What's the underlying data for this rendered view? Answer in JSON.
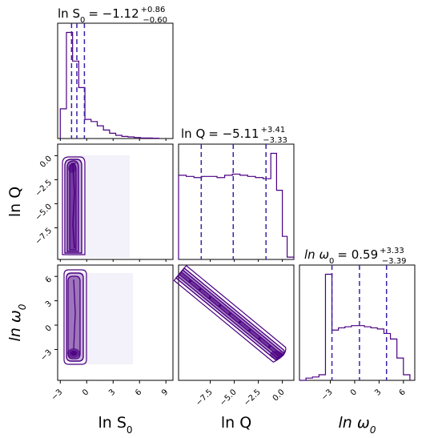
{
  "chart_data": [
    {
      "type": "histogram",
      "panel": "ln_S0_marginal",
      "title": {
        "lhs": "ln S",
        "sub": "0",
        "value": "= −1.12",
        "plus": "+0.86",
        "minus": "−0.60"
      },
      "xlim": [
        -3.3,
        9.8
      ],
      "bins_edges": [
        -3.0,
        -2.3,
        -1.6,
        -0.9,
        -0.2,
        0.5,
        1.2,
        1.9,
        2.6,
        3.3,
        4.0,
        4.7,
        5.4,
        6.1,
        6.8,
        7.5,
        8.2
      ],
      "bins_heights": [
        0.28,
        1.0,
        0.73,
        0.48,
        0.18,
        0.16,
        0.12,
        0.08,
        0.05,
        0.03,
        0.02,
        0.015,
        0.01,
        0.005,
        0.005,
        0.003
      ],
      "dashed_lines": [
        -1.72,
        -1.12,
        -0.26
      ],
      "color": "#4b0082"
    },
    {
      "type": "histogram",
      "panel": "ln_Q_marginal",
      "title": {
        "lhs": "ln Q",
        "sub": "",
        "value": "= −5.11",
        "plus": "+3.41",
        "minus": "−3.33"
      },
      "xlim": [
        -10.8,
        1.2
      ],
      "bins_edges": [
        -10.8,
        -10.0,
        -9.2,
        -8.4,
        -7.6,
        -6.8,
        -6.0,
        -5.2,
        -4.4,
        -3.6,
        -2.8,
        -2.0,
        -1.2,
        -0.6,
        0.0,
        0.5,
        1.2
      ],
      "bins_heights": [
        0.73,
        0.72,
        0.71,
        0.72,
        0.72,
        0.71,
        0.73,
        0.74,
        0.73,
        0.72,
        0.71,
        0.7,
        0.92,
        0.6,
        0.2,
        0.02
      ],
      "dashed_lines": [
        -8.44,
        -5.11,
        -1.7
      ],
      "color": "#4b0082"
    },
    {
      "type": "histogram",
      "panel": "ln_omega0_marginal",
      "title": {
        "lhs": "ln ω",
        "sub": "0",
        "value": "= 0.59",
        "plus": "+3.33",
        "minus": "−3.39"
      },
      "xlim": [
        -6.8,
        7.4
      ],
      "bins_edges": [
        -6.8,
        -6.0,
        -5.2,
        -4.4,
        -3.6,
        -2.8,
        -2.0,
        -1.2,
        -0.4,
        0.4,
        1.2,
        2.0,
        2.8,
        3.6,
        4.4,
        5.2,
        6.0,
        6.8
      ],
      "bins_heights": [
        0.0,
        0.02,
        0.03,
        0.05,
        0.95,
        0.45,
        0.47,
        0.48,
        0.49,
        0.49,
        0.48,
        0.47,
        0.46,
        0.42,
        0.37,
        0.2,
        0.05
      ],
      "dashed_lines": [
        -2.8,
        0.59,
        3.92
      ],
      "color": "#4b0082"
    },
    {
      "type": "contour",
      "panel": "ln_Q_vs_ln_S0",
      "x": "ln S0",
      "y": "ln Q",
      "xlim": [
        -3.3,
        9.8
      ],
      "ylim": [
        -10.8,
        1.2
      ],
      "description_points": [
        [
          -1.3,
          0.0
        ],
        [
          -1.3,
          -2.5
        ],
        [
          -1.3,
          -5.0
        ],
        [
          -1.3,
          -7.5
        ],
        [
          -1.3,
          -9.5
        ]
      ]
    },
    {
      "type": "contour",
      "panel": "ln_omega0_vs_ln_S0",
      "x": "ln S0",
      "y": "ln ω0",
      "xlim": [
        -3.3,
        9.8
      ],
      "ylim": [
        -6.8,
        7.4
      ],
      "description_points": [
        [
          -1.3,
          5.0
        ],
        [
          -1.3,
          0.0
        ],
        [
          -1.3,
          -3.0
        ]
      ]
    },
    {
      "type": "contour",
      "panel": "ln_omega0_vs_ln_Q",
      "x": "ln Q",
      "y": "ln ω0",
      "xlim": [
        -10.8,
        1.2
      ],
      "ylim": [
        -6.8,
        7.4
      ],
      "description_points": [
        [
          -10.0,
          5.5
        ],
        [
          -5.0,
          1.0
        ],
        [
          0.0,
          -3.0
        ]
      ]
    }
  ],
  "axes": {
    "left_ylabels": [
      {
        "main": "ln Q",
        "sub": ""
      },
      {
        "main": "ln ω",
        "sub": "0"
      }
    ],
    "bottom_xlabels": [
      {
        "main": "ln S",
        "sub": "0"
      },
      {
        "main": "ln Q",
        "sub": ""
      },
      {
        "main": "ln ω",
        "sub": "0"
      }
    ],
    "ticks": {
      "ln_S0": [
        "−3",
        "0",
        "3",
        "6",
        "9"
      ],
      "ln_Q": [
        "0.0",
        "−2.5",
        "−5.0",
        "−7.5"
      ],
      "ln_Q_bottom": [
        "−7.5",
        "−5.0",
        "−2.5",
        "0.0"
      ],
      "ln_omega0": [
        "6",
        "3",
        "0",
        "−3"
      ],
      "ln_omega0_bottom": [
        "−3",
        "0",
        "3",
        "6"
      ]
    }
  }
}
